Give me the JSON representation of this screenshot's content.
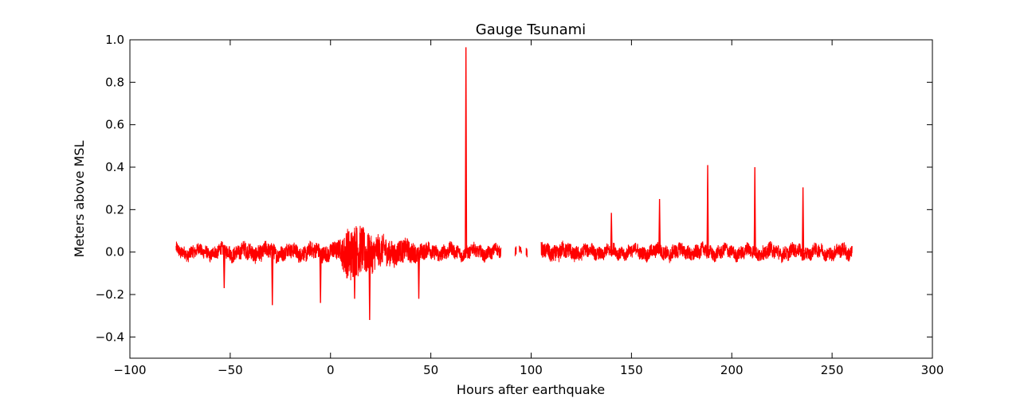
{
  "chart_data": {
    "type": "line",
    "title": "Gauge Tsunami",
    "xlabel": "Hours after earthquake",
    "ylabel": "Meters above MSL",
    "xlim": [
      -100,
      300
    ],
    "ylim": [
      -0.5,
      1.0
    ],
    "x_ticks": [
      -100,
      -50,
      0,
      50,
      100,
      150,
      200,
      250,
      300
    ],
    "x_tick_labels": [
      "−100",
      "−50",
      "0",
      "50",
      "100",
      "150",
      "200",
      "250",
      "300"
    ],
    "y_ticks": [
      -0.4,
      -0.2,
      0.0,
      0.2,
      0.4,
      0.6,
      0.8,
      1.0
    ],
    "y_tick_labels": [
      "−0.4",
      "−0.2",
      "0.0",
      "0.2",
      "0.4",
      "0.6",
      "0.8",
      "1.0"
    ],
    "grid": false,
    "series": [
      {
        "color": "#ff0000",
        "segments": [
          {
            "x_start": -77,
            "x_end": 85,
            "noise": [
              [
                -77,
                0.03
              ],
              [
                -60,
                0.03
              ],
              [
                -40,
                0.04
              ],
              [
                -20,
                0.035
              ],
              [
                0,
                0.04
              ],
              [
                5,
                0.05
              ],
              [
                8,
                0.12
              ],
              [
                12,
                0.13
              ],
              [
                16,
                0.11
              ],
              [
                22,
                0.08
              ],
              [
                30,
                0.06
              ],
              [
                40,
                0.05
              ],
              [
                45,
                0.04
              ],
              [
                55,
                0.035
              ],
              [
                70,
                0.03
              ],
              [
                85,
                0.03
              ]
            ]
          },
          {
            "x_start": 92,
            "x_end": 92.6,
            "noise": [
              [
                92,
                0.02
              ],
              [
                92.6,
                0.02
              ]
            ]
          },
          {
            "x_start": 94,
            "x_end": 95.2,
            "noise": [
              [
                94,
                0.02
              ],
              [
                95.2,
                0.02
              ]
            ]
          },
          {
            "x_start": 97.5,
            "x_end": 98,
            "noise": [
              [
                97.5,
                0.02
              ],
              [
                98,
                0.02
              ]
            ]
          },
          {
            "x_start": 105,
            "x_end": 260,
            "noise": [
              [
                105,
                0.035
              ],
              [
                115,
                0.04
              ],
              [
                130,
                0.03
              ],
              [
                150,
                0.03
              ],
              [
                170,
                0.035
              ],
              [
                200,
                0.03
              ],
              [
                220,
                0.035
              ],
              [
                240,
                0.03
              ],
              [
                260,
                0.035
              ]
            ]
          }
        ],
        "spikes": [
          {
            "x": -53,
            "y": -0.17
          },
          {
            "x": -29,
            "y": -0.25
          },
          {
            "x": -5,
            "y": -0.24
          },
          {
            "x": 12,
            "y": -0.22
          },
          {
            "x": 19.5,
            "y": -0.32
          },
          {
            "x": 44,
            "y": -0.22
          },
          {
            "x": 67.5,
            "y": 0.965
          },
          {
            "x": 140,
            "y": 0.185
          },
          {
            "x": 164,
            "y": 0.25
          },
          {
            "x": 188,
            "y": 0.41
          },
          {
            "x": 211.5,
            "y": 0.4
          },
          {
            "x": 235.5,
            "y": 0.305
          }
        ]
      }
    ]
  }
}
